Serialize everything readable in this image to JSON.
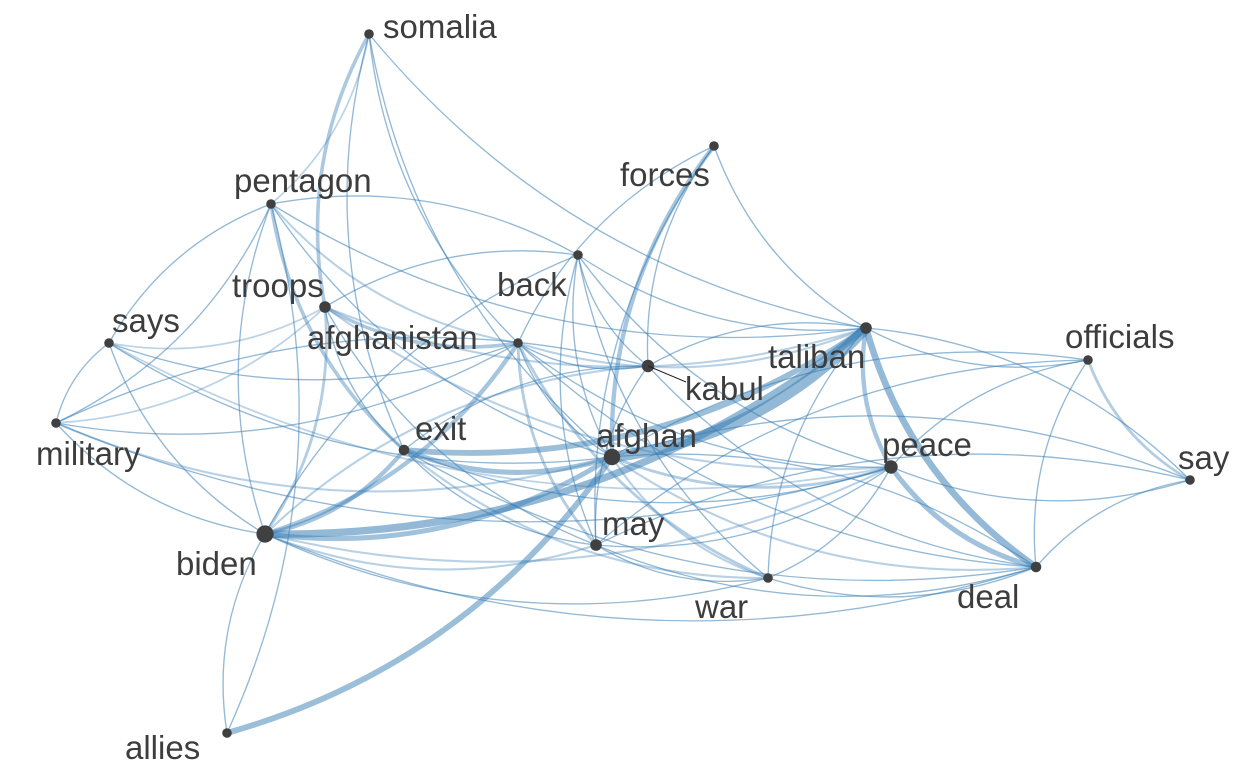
{
  "chart_data": {
    "type": "network",
    "edge_color": "#3a7fb5",
    "node_color": "#404040",
    "label_color": "#3d3d3d",
    "nodes": [
      {
        "id": "somalia",
        "label": "somalia",
        "weight": 1
      },
      {
        "id": "forces",
        "label": "forces",
        "weight": 1
      },
      {
        "id": "pentagon",
        "label": "pentagon",
        "weight": 1
      },
      {
        "id": "back",
        "label": "back",
        "weight": 1
      },
      {
        "id": "troops",
        "label": "troops",
        "weight": 1.2
      },
      {
        "id": "says",
        "label": "says",
        "weight": 1
      },
      {
        "id": "afghanistan",
        "label": "afghanistan",
        "weight": 1
      },
      {
        "id": "taliban",
        "label": "taliban",
        "weight": 1.2
      },
      {
        "id": "officials",
        "label": "officials",
        "weight": 1
      },
      {
        "id": "kabul",
        "label": "kabul",
        "weight": 1.3
      },
      {
        "id": "military",
        "label": "military",
        "weight": 1
      },
      {
        "id": "exit",
        "label": "exit",
        "weight": 1.1
      },
      {
        "id": "afghan",
        "label": "afghan",
        "weight": 1.7
      },
      {
        "id": "peace",
        "label": "peace",
        "weight": 1.4
      },
      {
        "id": "say",
        "label": "say",
        "weight": 1
      },
      {
        "id": "biden",
        "label": "biden",
        "weight": 1.8
      },
      {
        "id": "may",
        "label": "may",
        "weight": 1.2
      },
      {
        "id": "war",
        "label": "war",
        "weight": 1
      },
      {
        "id": "deal",
        "label": "deal",
        "weight": 1.1
      },
      {
        "id": "allies",
        "label": "allies",
        "weight": 1
      }
    ],
    "edges": [
      {
        "source": "afghan",
        "target": "taliban",
        "weight": 14
      },
      {
        "source": "biden",
        "target": "taliban",
        "weight": 9
      },
      {
        "source": "exit",
        "target": "taliban",
        "weight": 7
      },
      {
        "source": "taliban",
        "target": "deal",
        "weight": 8
      },
      {
        "source": "peace",
        "target": "deal",
        "weight": 6
      },
      {
        "source": "taliban",
        "target": "peace",
        "weight": 5
      },
      {
        "source": "allies",
        "target": "afghan",
        "weight": 7
      },
      {
        "source": "biden",
        "target": "afghan",
        "weight": 6
      },
      {
        "source": "exit",
        "target": "afghan",
        "weight": 6
      },
      {
        "source": "biden",
        "target": "afghanistan",
        "weight": 5
      },
      {
        "source": "biden",
        "target": "exit",
        "weight": 5
      },
      {
        "source": "forces",
        "target": "afghan",
        "weight": 5
      },
      {
        "source": "troops",
        "target": "afghanistan",
        "weight": 4
      },
      {
        "source": "somalia",
        "target": "troops",
        "weight": 4
      },
      {
        "source": "pentagon",
        "target": "exit",
        "weight": 4
      },
      {
        "source": "biden",
        "target": "troops",
        "weight": 3
      },
      {
        "source": "afghanistan",
        "target": "may",
        "weight": 3
      },
      {
        "source": "afghanistan",
        "target": "war",
        "weight": 3
      },
      {
        "source": "afghan",
        "target": "peace",
        "weight": 3
      },
      {
        "source": "officials",
        "target": "say",
        "weight": 3
      },
      {
        "source": "military",
        "target": "afghan",
        "weight": 2
      },
      {
        "source": "troops",
        "target": "taliban",
        "weight": 2
      },
      {
        "source": "pentagon",
        "target": "afghanistan",
        "weight": 2
      },
      {
        "source": "troops",
        "target": "peace",
        "weight": 2
      },
      {
        "source": "exit",
        "target": "war",
        "weight": 2
      },
      {
        "source": "afghan",
        "target": "deal",
        "weight": 2
      },
      {
        "source": "afghan",
        "target": "war",
        "weight": 2
      },
      {
        "source": "biden",
        "target": "may",
        "weight": 2
      },
      {
        "source": "biden",
        "target": "peace",
        "weight": 2
      },
      {
        "source": "afghanistan",
        "target": "taliban",
        "weight": 2
      },
      {
        "source": "kabul",
        "target": "biden",
        "weight": 2
      },
      {
        "source": "pentagon",
        "target": "somalia",
        "weight": 1.5
      },
      {
        "source": "says",
        "target": "troops",
        "weight": 1.5
      },
      {
        "source": "says",
        "target": "peace",
        "weight": 1.5
      },
      {
        "source": "military",
        "target": "troops",
        "weight": 1.5
      },
      {
        "source": "military",
        "target": "afghanistan",
        "weight": 1
      },
      {
        "source": "military",
        "target": "biden",
        "weight": 1
      },
      {
        "source": "says",
        "target": "biden",
        "weight": 1
      },
      {
        "source": "says",
        "target": "afghan",
        "weight": 1
      },
      {
        "source": "military",
        "target": "pentagon",
        "weight": 1
      },
      {
        "source": "somalia",
        "target": "taliban",
        "weight": 1
      },
      {
        "source": "somalia",
        "target": "afghanistan",
        "weight": 1
      },
      {
        "source": "somalia",
        "target": "afghan",
        "weight": 1
      },
      {
        "source": "forces",
        "target": "taliban",
        "weight": 1
      },
      {
        "source": "forces",
        "target": "afghanistan",
        "weight": 1
      },
      {
        "source": "forces",
        "target": "may",
        "weight": 1
      },
      {
        "source": "back",
        "target": "taliban",
        "weight": 1
      },
      {
        "source": "back",
        "target": "afghan",
        "weight": 1
      },
      {
        "source": "back",
        "target": "biden",
        "weight": 1
      },
      {
        "source": "back",
        "target": "peace",
        "weight": 1
      },
      {
        "source": "back",
        "target": "troops",
        "weight": 1
      },
      {
        "source": "back",
        "target": "war",
        "weight": 1
      },
      {
        "source": "back",
        "target": "pentagon",
        "weight": 1
      },
      {
        "source": "pentagon",
        "target": "taliban",
        "weight": 1
      },
      {
        "source": "pentagon",
        "target": "afghan",
        "weight": 1
      },
      {
        "source": "pentagon",
        "target": "biden",
        "weight": 1
      },
      {
        "source": "pentagon",
        "target": "says",
        "weight": 1
      },
      {
        "source": "says",
        "target": "military",
        "weight": 1
      },
      {
        "source": "afghanistan",
        "target": "kabul",
        "weight": 1
      },
      {
        "source": "afghanistan",
        "target": "deal",
        "weight": 1
      },
      {
        "source": "afghanistan",
        "target": "peace",
        "weight": 1
      },
      {
        "source": "afghanistan",
        "target": "afghan",
        "weight": 1
      },
      {
        "source": "taliban",
        "target": "officials",
        "weight": 1
      },
      {
        "source": "taliban",
        "target": "kabul",
        "weight": 1
      },
      {
        "source": "taliban",
        "target": "war",
        "weight": 1
      },
      {
        "source": "officials",
        "target": "peace",
        "weight": 1
      },
      {
        "source": "officials",
        "target": "deal",
        "weight": 1
      },
      {
        "source": "officials",
        "target": "afghan",
        "weight": 1
      },
      {
        "source": "officials",
        "target": "may",
        "weight": 1
      },
      {
        "source": "say",
        "target": "afghan",
        "weight": 1
      },
      {
        "source": "say",
        "target": "taliban",
        "weight": 1
      },
      {
        "source": "say",
        "target": "deal",
        "weight": 1
      },
      {
        "source": "say",
        "target": "may",
        "weight": 1
      },
      {
        "source": "kabul",
        "target": "may",
        "weight": 1
      },
      {
        "source": "kabul",
        "target": "exit",
        "weight": 1
      },
      {
        "source": "kabul",
        "target": "military",
        "weight": 1
      },
      {
        "source": "kabul",
        "target": "deal",
        "weight": 1
      },
      {
        "source": "exit",
        "target": "may",
        "weight": 1
      },
      {
        "source": "exit",
        "target": "deal",
        "weight": 1
      },
      {
        "source": "exit",
        "target": "peace",
        "weight": 1
      },
      {
        "source": "may",
        "target": "peace",
        "weight": 1
      },
      {
        "source": "may",
        "target": "war",
        "weight": 1
      },
      {
        "source": "may",
        "target": "deal",
        "weight": 1
      },
      {
        "source": "war",
        "target": "peace",
        "weight": 1
      },
      {
        "source": "war",
        "target": "deal",
        "weight": 1
      },
      {
        "source": "biden",
        "target": "war",
        "weight": 1
      },
      {
        "source": "biden",
        "target": "deal",
        "weight": 1
      },
      {
        "source": "biden",
        "target": "allies",
        "weight": 1
      },
      {
        "source": "allies",
        "target": "pentagon",
        "weight": 1
      },
      {
        "source": "troops",
        "target": "exit",
        "weight": 1
      },
      {
        "source": "troops",
        "target": "may",
        "weight": 1
      },
      {
        "source": "military",
        "target": "peace",
        "weight": 1
      },
      {
        "source": "says",
        "target": "afghanistan",
        "weight": 1
      },
      {
        "source": "somalia",
        "target": "exit",
        "weight": 1
      },
      {
        "source": "forces",
        "target": "kabul",
        "weight": 1
      },
      {
        "source": "back",
        "target": "may",
        "weight": 1
      },
      {
        "source": "back",
        "target": "kabul",
        "weight": 1
      },
      {
        "source": "peace",
        "target": "say",
        "weight": 1
      },
      {
        "source": "deal",
        "target": "afghan",
        "weight": 1
      }
    ]
  }
}
